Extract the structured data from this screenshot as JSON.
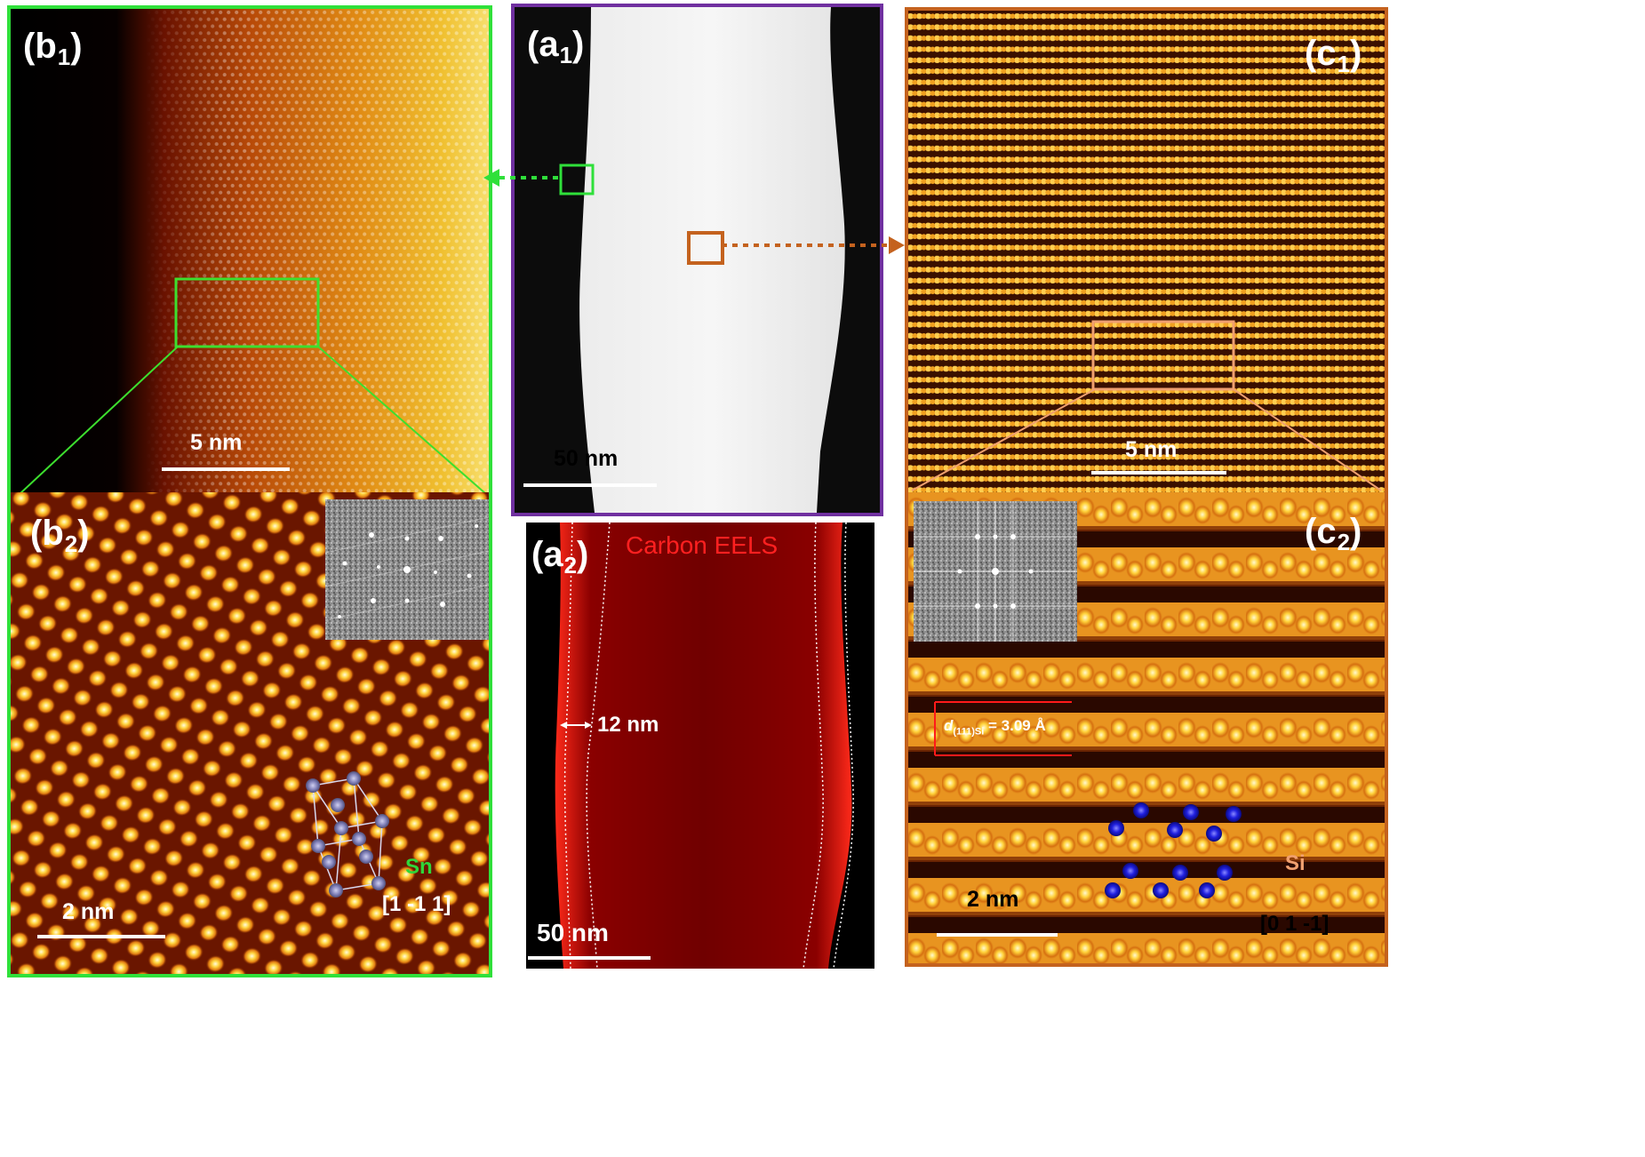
{
  "colors": {
    "green_frame": "#2fe03a",
    "purple_frame": "#7030a0",
    "orange_frame": "#c4621e",
    "carbon_red": "#ff2020",
    "sn_label": "#2fd63a",
    "si_label": "#f0a070",
    "atom_sn": "#8e8ec0",
    "atom_si": "#1c1cd0"
  },
  "panels": {
    "b1": {
      "label_main": "(b",
      "label_sub": "1",
      "label_close": ")",
      "scale": "5 nm"
    },
    "b2": {
      "label_main": "(b",
      "label_sub": "2",
      "label_close": ")",
      "scale": "2 nm",
      "element": "Sn",
      "zone_axis": "[1 -1 1]"
    },
    "a1": {
      "label_main": "(a",
      "label_sub": "1",
      "label_close": ")",
      "scale": "50 nm"
    },
    "a2": {
      "label_main": "(a",
      "label_sub": "2",
      "label_close": ")",
      "title": "Carbon EELS",
      "thickness": "12 nm",
      "scale": "50 nm"
    },
    "c1": {
      "label_main": "(c",
      "label_sub": "1",
      "label_close": ")",
      "scale": "5 nm"
    },
    "c2": {
      "label_main": "(c",
      "label_sub": "2",
      "label_close": ")",
      "scale": "2 nm",
      "element": "Si",
      "zone_axis": "[0 1 -1]",
      "d_label": "d",
      "d_sub": "(111)Si",
      "d_value": "= 3.09 Å"
    }
  }
}
